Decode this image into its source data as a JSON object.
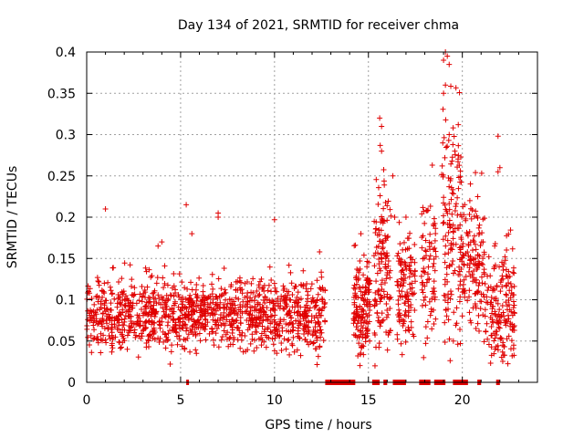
{
  "chart_data": {
    "type": "scatter",
    "title": "Day 134 of 2021, SRMTID for receiver chma",
    "xlabel": "GPS time / hours",
    "ylabel": "SRMTID / TECUs",
    "xlim": [
      0,
      24
    ],
    "ylim": [
      0,
      0.4
    ],
    "x_ticks": [
      0,
      5,
      10,
      15,
      20
    ],
    "y_ticks": [
      0,
      0.05,
      0.1,
      0.15,
      0.2,
      0.25,
      0.3,
      0.35,
      0.4
    ],
    "x_tick_labels": [
      "0",
      "5",
      "10",
      "15",
      "20"
    ],
    "y_tick_labels": [
      "0",
      "0.05",
      "0.1",
      "0.15",
      "0.2",
      "0.25",
      "0.3",
      "0.35",
      "0.4"
    ],
    "grid": true,
    "marker": "plus",
    "color": "#e00000",
    "clusters": [
      {
        "x": [
          0.0,
          12.7
        ],
        "center": 0.082,
        "spread": 0.022,
        "count": 1200
      },
      {
        "x": [
          14.2,
          15.1
        ],
        "center": 0.09,
        "spread": 0.03,
        "count": 150
      },
      {
        "x": [
          15.3,
          16.2
        ],
        "center": 0.14,
        "spread": 0.05,
        "count": 130
      },
      {
        "x": [
          16.5,
          17.5
        ],
        "center": 0.11,
        "spread": 0.035,
        "count": 120
      },
      {
        "x": [
          17.8,
          18.6
        ],
        "center": 0.13,
        "spread": 0.05,
        "count": 80
      },
      {
        "x": [
          18.9,
          20.0
        ],
        "center": 0.19,
        "spread": 0.07,
        "count": 150
      },
      {
        "x": [
          20.0,
          21.2
        ],
        "center": 0.15,
        "spread": 0.04,
        "count": 130
      },
      {
        "x": [
          21.2,
          22.8
        ],
        "center": 0.09,
        "spread": 0.035,
        "count": 170
      }
    ],
    "extra_points": [
      [
        1.0,
        0.21
      ],
      [
        5.3,
        0.215
      ],
      [
        7.0,
        0.205
      ],
      [
        7.0,
        0.2
      ],
      [
        10.0,
        0.197
      ],
      [
        15.6,
        0.32
      ],
      [
        15.7,
        0.31
      ],
      [
        15.7,
        0.28
      ],
      [
        18.4,
        0.263
      ],
      [
        19.1,
        0.4
      ],
      [
        19.2,
        0.395
      ],
      [
        19.0,
        0.39
      ],
      [
        19.3,
        0.385
      ],
      [
        19.1,
        0.36
      ],
      [
        19.0,
        0.35
      ],
      [
        21.9,
        0.298
      ],
      [
        19.3,
        0.3
      ],
      [
        20.7,
        0.254
      ],
      [
        22.0,
        0.26
      ],
      [
        21.9,
        0.255
      ],
      [
        17.0,
        0.2
      ],
      [
        16.4,
        0.2
      ],
      [
        4.0,
        0.17
      ],
      [
        3.8,
        0.165
      ],
      [
        12.4,
        0.158
      ],
      [
        14.6,
        0.18
      ],
      [
        16.3,
        0.25
      ],
      [
        19.6,
        0.28
      ],
      [
        20.4,
        0.22
      ],
      [
        5.6,
        0.18
      ]
    ],
    "zero_segments": [
      [
        5.3,
        5.4
      ],
      [
        12.7,
        14.3
      ],
      [
        15.2,
        15.6
      ],
      [
        15.8,
        16.0
      ],
      [
        16.3,
        17.0
      ],
      [
        17.7,
        18.3
      ],
      [
        18.5,
        19.1
      ],
      [
        19.5,
        20.3
      ],
      [
        20.8,
        21.0
      ],
      [
        21.8,
        22.0
      ]
    ]
  }
}
